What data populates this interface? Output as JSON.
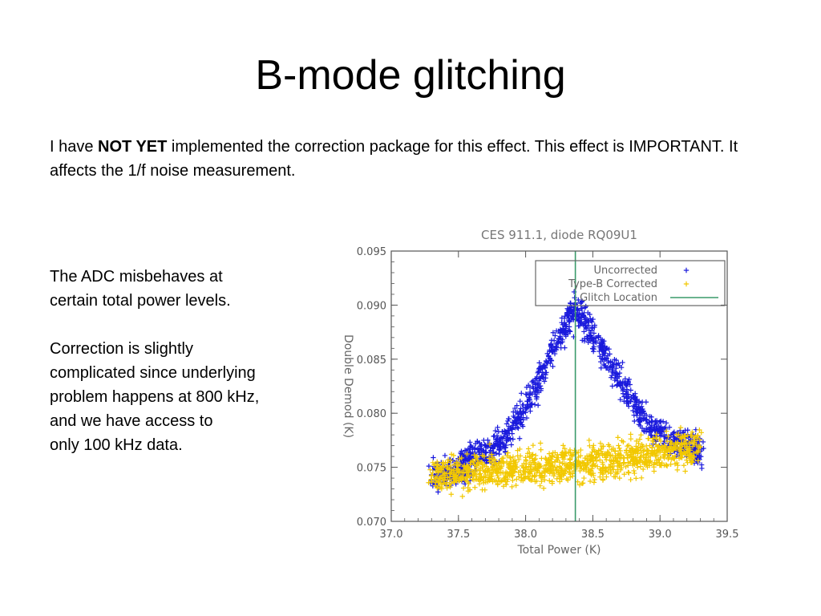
{
  "slide": {
    "title": "B-mode glitching",
    "intro": {
      "prefix": "I have ",
      "bold": "NOT YET",
      "suffix": " implemented the correction package for this effect.  This effect is IMPORTANT.  It affects the 1/f noise measurement."
    },
    "paragraphs": [
      "The ADC  misbehaves at\ncertain total power levels.",
      "Correction is slightly\ncomplicated since underlying\nproblem happens at 800 kHz,\nand we have access to\nonly 100 kHz data."
    ]
  },
  "chart_data": {
    "type": "scatter",
    "title": "CES 911.1, diode RQ09U1",
    "xlabel": "Total Power (K)",
    "ylabel": "Double Demod (K)",
    "xlim": [
      37.0,
      39.5
    ],
    "ylim": [
      0.07,
      0.095
    ],
    "xticks": [
      "37.0",
      "37.5",
      "38.0",
      "38.5",
      "39.0",
      "39.5"
    ],
    "yticks": [
      "0.070",
      "0.075",
      "0.080",
      "0.085",
      "0.090",
      "0.095"
    ],
    "legend_position": "top-right",
    "legend": [
      "Uncorrected",
      "Type-B Corrected",
      "Glitch Location"
    ],
    "colors": {
      "uncorrected": "#1a1adc",
      "corrected": "#f2c800",
      "glitch": "#3a9a6a"
    },
    "vline": {
      "x": 38.37
    },
    "series": [
      {
        "name": "Uncorrected",
        "points": [
          [
            37.3,
            0.0743
          ],
          [
            37.4,
            0.0744
          ],
          [
            37.5,
            0.0747
          ],
          [
            37.55,
            0.0752
          ],
          [
            37.6,
            0.0758
          ],
          [
            37.7,
            0.0764
          ],
          [
            37.8,
            0.077
          ],
          [
            37.9,
            0.0785
          ],
          [
            38.0,
            0.0805
          ],
          [
            38.1,
            0.083
          ],
          [
            38.2,
            0.0858
          ],
          [
            38.3,
            0.0882
          ],
          [
            38.37,
            0.0895
          ],
          [
            38.45,
            0.0885
          ],
          [
            38.55,
            0.0862
          ],
          [
            38.65,
            0.084
          ],
          [
            38.75,
            0.082
          ],
          [
            38.85,
            0.08
          ],
          [
            38.95,
            0.0785
          ],
          [
            39.05,
            0.0777
          ],
          [
            39.15,
            0.0772
          ],
          [
            39.25,
            0.0768
          ],
          [
            39.3,
            0.0765
          ]
        ]
      },
      {
        "name": "Type-B Corrected",
        "points": [
          [
            37.3,
            0.0742
          ],
          [
            37.4,
            0.0744
          ],
          [
            37.5,
            0.0745
          ],
          [
            37.6,
            0.0746
          ],
          [
            37.7,
            0.0747
          ],
          [
            37.8,
            0.0748
          ],
          [
            37.9,
            0.0749
          ],
          [
            38.0,
            0.075
          ],
          [
            38.1,
            0.0751
          ],
          [
            38.2,
            0.0752
          ],
          [
            38.3,
            0.0753
          ],
          [
            38.4,
            0.0754
          ],
          [
            38.5,
            0.0756
          ],
          [
            38.6,
            0.0757
          ],
          [
            38.7,
            0.0759
          ],
          [
            38.8,
            0.076
          ],
          [
            38.9,
            0.0762
          ],
          [
            39.0,
            0.0764
          ],
          [
            39.1,
            0.0766
          ],
          [
            39.2,
            0.0768
          ],
          [
            39.3,
            0.0769
          ]
        ]
      }
    ]
  }
}
